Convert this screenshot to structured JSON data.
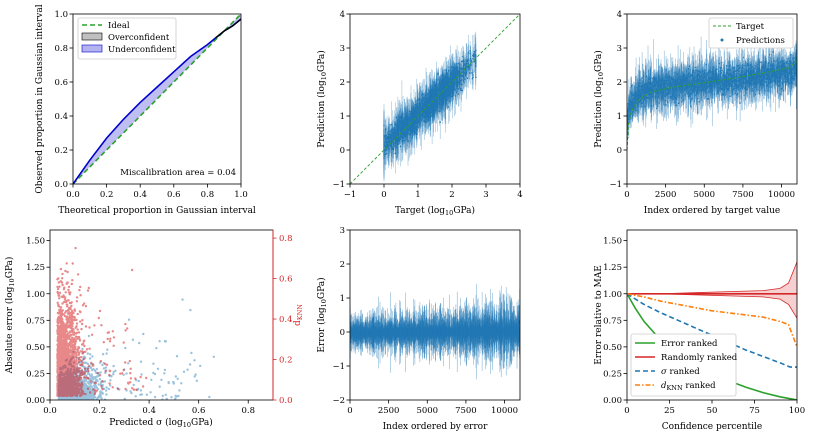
{
  "colors": {
    "blue": "#1f77b4",
    "green_dashed": "#2ca02c",
    "red": "#d62728",
    "orange": "#ff7f0e",
    "calib_blue": "#0000cc",
    "under_fill": "#b3b3f0",
    "over_fill": "#c0c0c0"
  },
  "chart_data": [
    {
      "id": "calibration",
      "type": "line",
      "xlabel": "Theoretical proportion in Gaussian interval",
      "ylabel": "Observed proportion in Gaussian interval",
      "xlim": [
        0,
        1
      ],
      "ylim": [
        0,
        1
      ],
      "xticks": [
        "0.0",
        "0.2",
        "0.4",
        "0.6",
        "0.8",
        "1.0"
      ],
      "yticks": [
        "0.0",
        "0.2",
        "0.4",
        "0.6",
        "0.8",
        "1.0"
      ],
      "legend": [
        "Ideal",
        "Overconfident",
        "Underconfident"
      ],
      "annotation": "Miscalibration area = 0.04",
      "series": [
        {
          "name": "Ideal",
          "x": [
            0,
            1
          ],
          "y": [
            0,
            1
          ]
        },
        {
          "name": "Observed",
          "x": [
            0,
            0.1,
            0.2,
            0.3,
            0.4,
            0.5,
            0.6,
            0.7,
            0.8,
            0.85,
            0.9,
            0.95,
            1.0
          ],
          "y": [
            0,
            0.14,
            0.27,
            0.38,
            0.48,
            0.57,
            0.66,
            0.75,
            0.82,
            0.86,
            0.9,
            0.93,
            0.97
          ]
        }
      ]
    },
    {
      "id": "parity",
      "type": "scatter",
      "xlabel": "Target (log10GPa)",
      "ylabel": "Prediction (log10GPa)",
      "xlim": [
        -1,
        4
      ],
      "ylim": [
        -1,
        4
      ],
      "xticks": [
        "−1",
        "0",
        "1",
        "2",
        "3",
        "4"
      ],
      "yticks": [
        "−1",
        "0",
        "1",
        "2",
        "3",
        "4"
      ],
      "n_points": 11000,
      "x_range": [
        0,
        2.7
      ],
      "ideal_line": [
        [
          -1,
          -1
        ],
        [
          4,
          4
        ]
      ]
    },
    {
      "id": "ordered_prediction",
      "type": "scatter",
      "xlabel": "Index ordered by target value",
      "ylabel": "Prediction (log10GPa)",
      "xlim": [
        0,
        11000
      ],
      "ylim": [
        -1,
        4
      ],
      "xticks": [
        "0",
        "2500",
        "5000",
        "7500",
        "10000"
      ],
      "yticks": [
        "−1",
        "0",
        "1",
        "2",
        "3",
        "4"
      ],
      "legend": [
        "Target",
        "Predictions"
      ],
      "target_curve_x": [
        0,
        100,
        300,
        700,
        1500,
        3000,
        5000,
        7000,
        9000,
        10500,
        11000
      ],
      "target_curve_y": [
        0.0,
        0.75,
        1.15,
        1.45,
        1.7,
        1.85,
        1.98,
        2.12,
        2.28,
        2.42,
        2.62
      ]
    },
    {
      "id": "error_vs_sigma",
      "type": "scatter",
      "xlabel": "Predicted σ (log10GPa)",
      "ylabel": "Absolute error (log10GPa)",
      "ylabel_right": "dKNN",
      "xlim": [
        0,
        0.9
      ],
      "ylim": [
        0,
        1.6
      ],
      "ylim_right": [
        0,
        0.84
      ],
      "xticks": [
        "0.0",
        "0.2",
        "0.4",
        "0.6",
        "0.8"
      ],
      "yticks": [
        "0.00",
        "0.25",
        "0.50",
        "0.75",
        "1.00",
        "1.25",
        "1.50"
      ],
      "yticks_right": [
        "0.0",
        "0.2",
        "0.4",
        "0.6",
        "0.8"
      ]
    },
    {
      "id": "ordered_error",
      "type": "scatter",
      "xlabel": "Index ordered by error",
      "ylabel": "Error (log10GPa)",
      "xlim": [
        0,
        11000
      ],
      "ylim": [
        -2,
        3
      ],
      "xticks": [
        "0",
        "2500",
        "5000",
        "7500",
        "10000"
      ],
      "yticks": [
        "−2",
        "−1",
        "0",
        "1",
        "2",
        "3"
      ]
    },
    {
      "id": "confidence",
      "type": "line",
      "xlabel": "Confidence percentile",
      "ylabel": "Error relative to MAE",
      "xlim": [
        0,
        100
      ],
      "ylim": [
        0,
        1.6
      ],
      "xticks": [
        "0",
        "25",
        "50",
        "75",
        "100"
      ],
      "yticks": [
        "0.00",
        "0.25",
        "0.50",
        "0.75",
        "1.00",
        "1.25",
        "1.50"
      ],
      "legend": [
        "Error ranked",
        "Randomly ranked",
        "σ ranked",
        "dKNN ranked"
      ],
      "series": [
        {
          "name": "Error ranked",
          "x": [
            0,
            5,
            10,
            20,
            30,
            40,
            50,
            60,
            70,
            80,
            90,
            100
          ],
          "y": [
            1.0,
            0.86,
            0.74,
            0.56,
            0.43,
            0.33,
            0.25,
            0.18,
            0.12,
            0.07,
            0.03,
            0.0
          ]
        },
        {
          "name": "Randomly ranked",
          "x": [
            0,
            20,
            40,
            60,
            80,
            90,
            95,
            100
          ],
          "y": [
            1.0,
            1.0,
            1.0,
            1.0,
            1.0,
            1.0,
            1.0,
            1.0
          ]
        },
        {
          "name": "σ ranked",
          "x": [
            0,
            10,
            20,
            30,
            40,
            50,
            60,
            70,
            80,
            90,
            96,
            100
          ],
          "y": [
            1.0,
            0.9,
            0.82,
            0.75,
            0.68,
            0.61,
            0.54,
            0.47,
            0.41,
            0.35,
            0.31,
            0.31
          ]
        },
        {
          "name": "dKNN ranked",
          "x": [
            0,
            10,
            20,
            30,
            40,
            50,
            60,
            70,
            80,
            85,
            90,
            95,
            100
          ],
          "y": [
            1.0,
            0.97,
            0.93,
            0.9,
            0.87,
            0.84,
            0.82,
            0.8,
            0.78,
            0.76,
            0.74,
            0.71,
            0.5
          ]
        }
      ],
      "random_band": {
        "x": [
          0,
          20,
          40,
          60,
          80,
          90,
          95,
          100
        ],
        "upper": [
          1.0,
          1.0,
          1.01,
          1.02,
          1.03,
          1.05,
          1.1,
          1.3
        ],
        "lower": [
          1.0,
          1.0,
          0.99,
          0.98,
          0.97,
          0.95,
          0.9,
          0.77
        ]
      }
    }
  ]
}
